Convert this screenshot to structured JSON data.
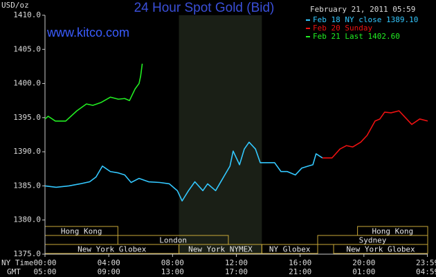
{
  "chart_data": {
    "type": "line",
    "title": "24 Hour Spot Gold (Bid)",
    "timestamp": "February 21, 2011 05:59",
    "watermark": "www.kitco.com",
    "y_unit": "USD/oz",
    "x_row_label": "NY Time",
    "x2_row_label": "GMT",
    "xlim": [
      0,
      24
    ],
    "xticks": [
      {
        "value": 0,
        "label": "00:00"
      },
      {
        "value": 4,
        "label": "04:00"
      },
      {
        "value": 8,
        "label": "08:00"
      },
      {
        "value": 12,
        "label": "12:00"
      },
      {
        "value": 16,
        "label": "16:00"
      },
      {
        "value": 20,
        "label": "20:00"
      },
      {
        "value": 23.983,
        "label": "23:59"
      }
    ],
    "x2_tick_labels": [
      "05:00",
      "09:00",
      "13:00",
      "17:00",
      "21:00",
      "01:00",
      "04:59"
    ],
    "ylim": [
      1375,
      1410
    ],
    "yticks": [
      {
        "value": 1375,
        "label": "1375.0"
      },
      {
        "value": 1380,
        "label": "1380.0"
      },
      {
        "value": 1385,
        "label": "1385.0"
      },
      {
        "value": 1390,
        "label": "1390.0"
      },
      {
        "value": 1395,
        "label": "1395.0"
      },
      {
        "value": 1400,
        "label": "1400.0"
      },
      {
        "value": 1405,
        "label": "1405.0"
      },
      {
        "value": 1410,
        "label": "1410.0"
      }
    ],
    "shaded": [
      8.4,
      13.6
    ],
    "session_rows": [
      [
        {
          "label": "Hong Kong",
          "start": 0,
          "end": 4.57
        },
        {
          "label": "Hong Kong",
          "start": 19.6,
          "end": 24
        }
      ],
      [
        {
          "label": "London",
          "start": 4.57,
          "end": 11.5
        },
        {
          "label": "Sydney",
          "start": 17.1,
          "end": 24
        }
      ],
      [
        {
          "label": "New York Globex",
          "start": 0,
          "end": 8.4
        },
        {
          "label": "New York NYMEX",
          "start": 8.4,
          "end": 13.6
        },
        {
          "label": "NY Globex",
          "start": 13.6,
          "end": 17.1
        },
        {
          "label": "New York Globex",
          "start": 18.1,
          "end": 24
        }
      ]
    ],
    "series": [
      {
        "name": "Feb 18 NY close 1389.10",
        "color": "#33c8ff",
        "x": [
          0,
          0.7,
          1.5,
          2.2,
          2.8,
          3.2,
          3.6,
          4.1,
          4.6,
          5.0,
          5.4,
          5.9,
          6.5,
          7.2,
          7.8,
          8.3,
          8.6,
          9.0,
          9.4,
          9.9,
          10.2,
          10.7,
          11.1,
          11.6,
          11.8,
          12.2,
          12.5,
          12.8,
          13.2,
          13.5,
          13.9,
          14.4,
          14.8,
          15.2,
          15.7,
          16.1,
          16.5,
          16.8,
          17.0,
          17.4
        ],
        "values": [
          1385.0,
          1384.8,
          1385.0,
          1385.3,
          1385.6,
          1386.3,
          1387.9,
          1387.1,
          1386.9,
          1386.6,
          1385.5,
          1386.1,
          1385.6,
          1385.5,
          1385.3,
          1384.3,
          1382.8,
          1384.3,
          1385.6,
          1384.3,
          1385.3,
          1384.3,
          1385.9,
          1387.9,
          1390.1,
          1388.1,
          1390.4,
          1391.4,
          1390.4,
          1388.4,
          1388.4,
          1388.4,
          1387.1,
          1387.1,
          1386.6,
          1387.6,
          1387.9,
          1388.1,
          1389.7,
          1389.1
        ]
      },
      {
        "name": "Feb 20 Sunday",
        "color": "#ee1111",
        "x": [
          17.4,
          18.0,
          18.5,
          18.9,
          19.3,
          19.8,
          20.2,
          20.7,
          21.0,
          21.3,
          21.7,
          22.2,
          22.6,
          23.0,
          23.5,
          24.0
        ],
        "values": [
          1389.1,
          1389.1,
          1390.4,
          1390.9,
          1390.7,
          1391.4,
          1392.4,
          1394.5,
          1394.8,
          1395.8,
          1395.7,
          1396.0,
          1395.0,
          1394.0,
          1394.8,
          1394.5
        ]
      },
      {
        "name": "Feb 21 Last 1402.60",
        "color": "#22ee22",
        "x": [
          0,
          0.2,
          0.65,
          1.3,
          2.0,
          2.6,
          3.0,
          3.5,
          4.1,
          4.6,
          5.0,
          5.3,
          5.65,
          5.9,
          6.0,
          6.1
        ],
        "values": [
          1394.8,
          1395.2,
          1394.5,
          1394.5,
          1396.0,
          1397.0,
          1396.8,
          1397.2,
          1398.0,
          1397.7,
          1397.8,
          1397.5,
          1399.2,
          1400.0,
          1401.1,
          1402.9
        ]
      }
    ]
  }
}
